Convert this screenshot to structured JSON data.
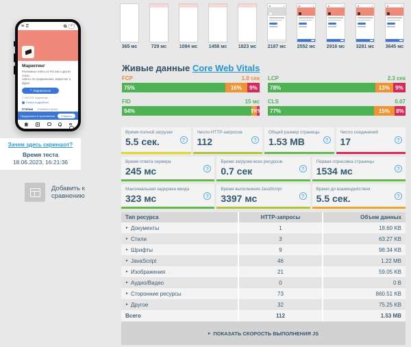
{
  "colors": {
    "good": "#4eb254",
    "mid": "#ee9434",
    "poor": "#d62958",
    "accent_blue": "#2196d3",
    "salmon_banner": "#f0897a",
    "subscribe_blue": "#3b76d6"
  },
  "filmstrip": [
    {
      "time": "365 мс",
      "state": "blank"
    },
    {
      "time": "729 мс",
      "state": "header"
    },
    {
      "time": "1094 мс",
      "state": "header"
    },
    {
      "time": "1458 мс",
      "state": "header"
    },
    {
      "time": "1823 мс",
      "state": "header"
    },
    {
      "time": "2187 мс",
      "state": "partial"
    },
    {
      "time": "2552 мс",
      "state": "loaded"
    },
    {
      "time": "2916 мс",
      "state": "loaded"
    },
    {
      "time": "3281 мс",
      "state": "loaded"
    },
    {
      "time": "3645 мс",
      "state": "loaded"
    }
  ],
  "phone": {
    "logo_line1": "vc",
    "logo_line2": "ru",
    "title": "Маркетинг",
    "description_line1": "Рекламные кейсы из России и других стран,",
    "description_line2": "советы по продвижению, маркетинг и digital.",
    "subscribe_button": "Подписаться",
    "subscribers": "1 042 931 подписчик",
    "more_link": "Узнать подробнее",
    "tab_articles": "Статьи",
    "tab_comments": "Комментарии",
    "app_banner_text": "Продолжить в приложении",
    "app_banner_button": "Открыть"
  },
  "sidebar": {
    "screenshot_link": "Зачем здесь скриншот?",
    "test_time_label": "Время теста",
    "test_time_value": "18.06.2023, 16:21:36",
    "compare_line1": "Добавить к",
    "compare_line2": "сравнению"
  },
  "cwv": {
    "title": "Живые данные",
    "link": "Core Web Vitals",
    "metrics": [
      {
        "name": "FCP",
        "value": "1.8 сек",
        "label_color": "#ed8b33",
        "good": 75,
        "mid": 16,
        "poor": 9
      },
      {
        "name": "LCP",
        "value": "2.3 сек",
        "label_color": "#4eb254",
        "good": 78,
        "mid": 13,
        "poor": 9
      },
      {
        "name": "FID",
        "value": "15 мс",
        "label_color": "#4eb254",
        "good": 94,
        "mid": 4,
        "poor": 2
      },
      {
        "name": "CLS",
        "value": "0.07",
        "label_color": "#4eb254",
        "good": 77,
        "mid": 15,
        "poor": 8
      }
    ]
  },
  "cards": {
    "rows": [
      [
        {
          "label": "Время полной загрузки",
          "value": "5.5 сек.",
          "color": "#e0d626"
        },
        {
          "label": "Число HTTP-запросов",
          "value": "112",
          "color": "#b4c334"
        },
        {
          "label": "Общий размер страницы",
          "value": "1.53 MB",
          "color": "#62bb46"
        },
        {
          "label": "Число соединений",
          "value": "17",
          "color": "#d62958"
        }
      ],
      [
        {
          "label": "Время ответа сервера",
          "value": "245 мс",
          "color": "#62bb46"
        },
        {
          "label": "Время загрузки всех ресурсов",
          "value": "0.7 сек",
          "color": "#62bb46"
        },
        {
          "label": "Первая отрисовка страницы",
          "value": "1534 мс",
          "color": "#62bb46"
        }
      ],
      [
        {
          "label": "Максимальная задержка ввода",
          "value": "323 мс",
          "color": "#62bb46"
        },
        {
          "label": "Время выполнения JavaScript",
          "value": "3397 мс",
          "color": "#b4c334"
        },
        {
          "label": "Время до взаимодействия",
          "value": "5.5 сек.",
          "color": "#efa228"
        }
      ]
    ]
  },
  "table": {
    "headers": [
      "Тип ресурса",
      "HTTP-запросы",
      "Объем данных"
    ],
    "rows": [
      {
        "type": "Документы",
        "requests": "1",
        "size": "18.60 KB"
      },
      {
        "type": "Стили",
        "requests": "3",
        "size": "63.27 KB"
      },
      {
        "type": "Шрифты",
        "requests": "9",
        "size": "98.34 KB"
      },
      {
        "type": "JavaScript",
        "requests": "46",
        "size": "1.22 MB"
      },
      {
        "type": "Изображения",
        "requests": "21",
        "size": "59.05 KB"
      },
      {
        "type": "Аудио/Видео",
        "requests": "0",
        "size": "0 B"
      },
      {
        "type": "Сторонние ресурсы",
        "requests": "73",
        "size": "860.51 KB"
      },
      {
        "type": "Другое",
        "requests": "32",
        "size": "75.25 KB"
      }
    ],
    "total": {
      "type": "Всего",
      "requests": "112",
      "size": "1.53 MB"
    },
    "footer": "ПОКАЗАТЬ СКОРОСТЬ ВЫПОЛНЕНИЯ JS"
  }
}
